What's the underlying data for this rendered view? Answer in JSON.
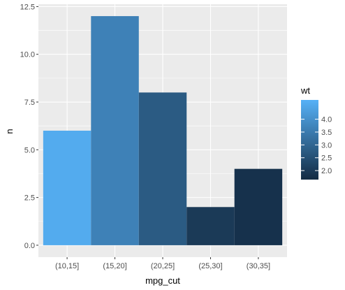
{
  "chart_data": {
    "type": "bar",
    "categories": [
      "(10,15]",
      "(15,20]",
      "(20,25]",
      "(25,30]",
      "(30,35]"
    ],
    "values": [
      6,
      12,
      8,
      2,
      4
    ],
    "fill_values": [
      4.6,
      3.65,
      2.75,
      2.0,
      1.8
    ],
    "xlabel": "mpg_cut",
    "ylabel": "n",
    "ylim": [
      -0.625,
      12.625
    ],
    "y_ticks": [
      0,
      2.5,
      5,
      7.5,
      10,
      12.5
    ],
    "y_tick_labels": [
      "0.0",
      "2.5",
      "5.0",
      "7.5",
      "10.0",
      "12.5"
    ],
    "grid": true,
    "panel_background": "#ebebeb",
    "grid_color": "#ffffff",
    "legend": {
      "title": "wt",
      "placement": "right",
      "ticks": [
        2.0,
        2.5,
        3.0,
        3.5,
        4.0
      ],
      "tick_labels": [
        "2.0",
        "2.5",
        "3.0",
        "3.5",
        "4.0"
      ],
      "range": [
        1.65,
        4.75
      ],
      "low_color": "#132b43",
      "high_color": "#56b1f7"
    }
  }
}
